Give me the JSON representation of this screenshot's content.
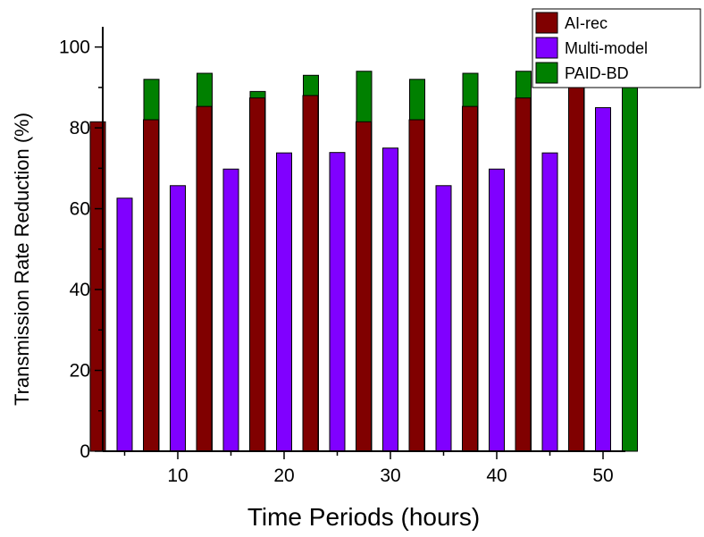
{
  "chart_data": {
    "type": "bar",
    "title": "",
    "xlabel": "Time Periods (hours)",
    "ylabel": "Transmission Rate Reduction (%)",
    "ylim": [
      0,
      105
    ],
    "yticks": [
      "0",
      "20",
      "40",
      "60",
      "80",
      "100"
    ],
    "xticks": [
      "10",
      "20",
      "30",
      "40",
      "50"
    ],
    "categories": [
      "5",
      "10",
      "15",
      "20",
      "25",
      "30",
      "35",
      "40",
      "45",
      "50"
    ],
    "series": [
      {
        "name": "AI-rec",
        "color": "#800000",
        "values": [
          81.5,
          82,
          85.3,
          87.4,
          88,
          81.5,
          82,
          85.3,
          87.4,
          91
        ]
      },
      {
        "name": "Multi-model",
        "color": "#8000ff",
        "values": [
          62.6,
          65.7,
          69.8,
          73.8,
          73.9,
          75,
          65.7,
          69.8,
          73.8,
          85
        ]
      },
      {
        "name": "PAID-BD",
        "color": "#008000",
        "values": [
          92,
          93.5,
          89,
          93,
          94,
          92,
          93.5,
          94,
          94.5,
          98
        ]
      }
    ],
    "grid": false,
    "legend_position": "top-right"
  }
}
